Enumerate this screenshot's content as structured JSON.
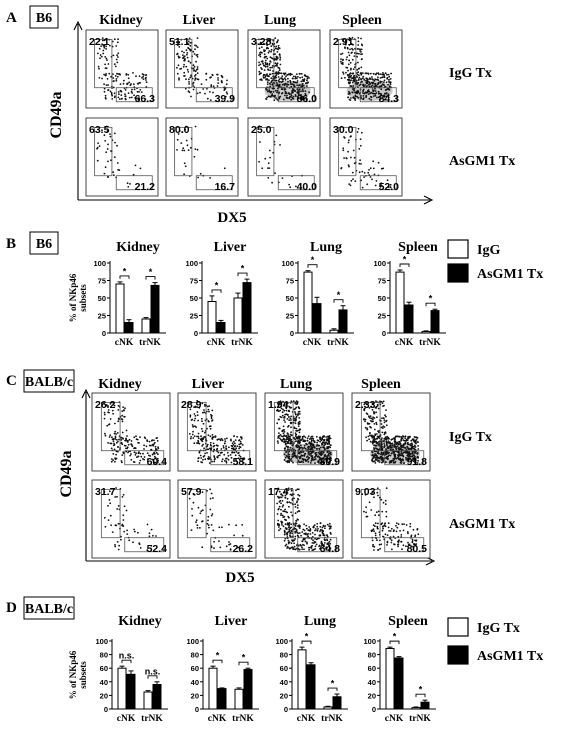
{
  "panels": {
    "A": {
      "letter": "A",
      "strain": "B6",
      "tissues": [
        "Kidney",
        "Liver",
        "Lung",
        "Spleen"
      ],
      "row_labels": [
        "IgG Tx",
        "AsGM1 Tx"
      ],
      "y_axis": "CD49a",
      "x_axis": "DX5",
      "gates": [
        [
          [
            "22.1",
            "66.3"
          ],
          [
            "51.1",
            "39.9"
          ],
          [
            "3.28",
            "86.0"
          ],
          [
            "2.91",
            "84.3"
          ]
        ],
        [
          [
            "63.5",
            "21.2"
          ],
          [
            "80.0",
            "16.7"
          ],
          [
            "25.0",
            "40.0"
          ],
          [
            "30.0",
            "52.0"
          ]
        ]
      ]
    },
    "B": {
      "letter": "B",
      "strain": "B6",
      "tissues": [
        "Kidney",
        "Liver",
        "Lung",
        "Spleen"
      ],
      "ylabel": "% of NKp46 subsets",
      "legend": [
        "IgG",
        "AsGM1 Tx"
      ],
      "yticks": [
        "0",
        "25",
        "50",
        "75",
        "100"
      ],
      "xlabels": [
        "cNK",
        "trNK"
      ],
      "sig": [
        "*",
        "*",
        "*",
        "*",
        "*",
        "*",
        "*",
        "*"
      ]
    },
    "C": {
      "letter": "C",
      "strain": "BALB/c",
      "tissues": [
        "Kidney",
        "Liver",
        "Lung",
        "Spleen"
      ],
      "row_labels": [
        "IgG Tx",
        "AsGM1 Tx"
      ],
      "y_axis": "CD49a",
      "x_axis": "DX5",
      "gates": [
        [
          [
            "26.2",
            "60.4"
          ],
          [
            "28.9",
            "58.1"
          ],
          [
            "1.94",
            "89.9"
          ],
          [
            "2.33",
            "91.8"
          ]
        ],
        [
          [
            "31.7",
            "52.4"
          ],
          [
            "57.9",
            "26.2"
          ],
          [
            "17.4",
            "64.8"
          ],
          [
            "9.03",
            "80.5"
          ]
        ]
      ]
    },
    "D": {
      "letter": "D",
      "strain": "BALB/c",
      "tissues": [
        "Kidney",
        "Liver",
        "Lung",
        "Spleen"
      ],
      "ylabel": "% of NKp46 subsets",
      "legend": [
        "IgG Tx",
        "AsGM1 Tx"
      ],
      "yticks": [
        "0",
        "20",
        "40",
        "60",
        "80",
        "100"
      ],
      "xlabels": [
        "cNK",
        "trNK"
      ],
      "sig": [
        "n.s.",
        "n.s.",
        "*",
        "*",
        "*",
        "*",
        "*",
        "*"
      ]
    }
  },
  "chart_data": [
    {
      "type": "bar",
      "panel": "B",
      "ylabel": "% of NKp46 subsets",
      "ylim": [
        0,
        100
      ],
      "facets": [
        "Kidney",
        "Liver",
        "Lung",
        "Spleen"
      ],
      "categories": [
        "cNK",
        "trNK"
      ],
      "series": [
        {
          "name": "IgG",
          "values": [
            [
              70,
              20
            ],
            [
              45,
              50
            ],
            [
              87,
              4
            ],
            [
              87,
              2
            ]
          ],
          "errors": [
            [
              3,
              2
            ],
            [
              8,
              7
            ],
            [
              2,
              2
            ],
            [
              3,
              1
            ]
          ]
        },
        {
          "name": "AsGM1 Tx",
          "values": [
            [
              15,
              68
            ],
            [
              15,
              72
            ],
            [
              42,
              33
            ],
            [
              40,
              32
            ]
          ],
          "errors": [
            [
              4,
              4
            ],
            [
              3,
              5
            ],
            [
              9,
              6
            ],
            [
              4,
              2
            ]
          ]
        }
      ]
    },
    {
      "type": "bar",
      "panel": "D",
      "ylabel": "% of NKp46 subsets",
      "ylim": [
        0,
        100
      ],
      "facets": [
        "Kidney",
        "Liver",
        "Lung",
        "Spleen"
      ],
      "categories": [
        "cNK",
        "trNK"
      ],
      "series": [
        {
          "name": "IgG Tx",
          "values": [
            [
              60,
              25
            ],
            [
              60,
              29
            ],
            [
              87,
              3
            ],
            [
              89,
              2
            ]
          ],
          "errors": [
            [
              3,
              2
            ],
            [
              3,
              2
            ],
            [
              4,
              1
            ],
            [
              2,
              1
            ]
          ]
        },
        {
          "name": "AsGM1 Tx",
          "values": [
            [
              51,
              36
            ],
            [
              30,
              58
            ],
            [
              65,
              18
            ],
            [
              75,
              10
            ]
          ],
          "errors": [
            [
              5,
              4
            ],
            [
              1,
              2
            ],
            [
              3,
              4
            ],
            [
              2,
              3
            ]
          ]
        }
      ]
    }
  ],
  "colors": {
    "igg_bar": "#ffffff",
    "asgm1_bar": "#000000",
    "density": "#777777"
  }
}
